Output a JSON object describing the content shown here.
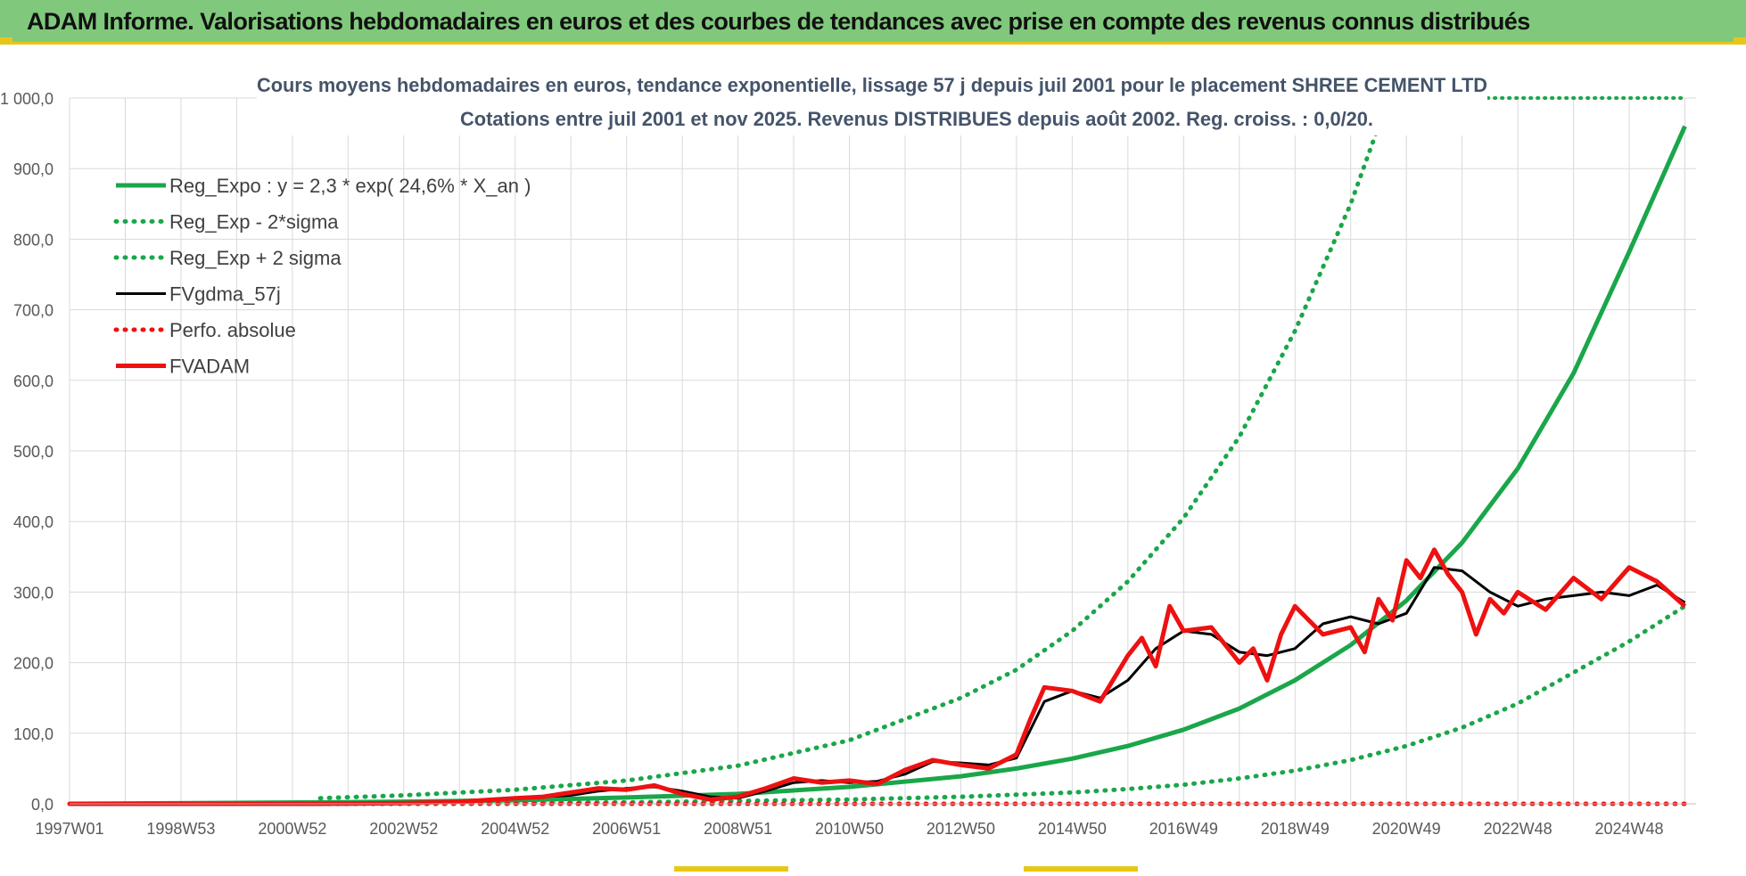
{
  "banner": {
    "title": "ADAM Informe. Valorisations hebdomadaires en euros et des courbes de tendances avec prise en compte des revenus connus distribués"
  },
  "colors": {
    "banner_bg": "#80c97c",
    "accent_yellow": "#e8c619",
    "reg_green": "#1aa64a",
    "black": "#000000",
    "red": "#ee1111",
    "grid": "#d9d9d9"
  },
  "chart_data": {
    "type": "line",
    "title": "Cours moyens hebdomadaires en euros, tendance exponentielle, lissage 57 j depuis juil 2001 pour le placement SHREE CEMENT LTD",
    "subtitle": "Cotations entre juil 2001 et nov 2025. Revenus DISTRIBUES depuis août 2002. Reg. croiss. : 0,0/20.",
    "xlabel": "",
    "ylabel": "",
    "ylim": [
      0,
      1000
    ],
    "xlim": [
      1997.0,
      2026.2
    ],
    "y_ticks": [
      0,
      100,
      200,
      300,
      400,
      500,
      600,
      700,
      800,
      900,
      1000
    ],
    "y_tick_labels": [
      "0,0",
      "100,0",
      "200,0",
      "300,0",
      "400,0",
      "500,0",
      "600,0",
      "700,0",
      "800,0",
      "900,0",
      "1 000,0"
    ],
    "x_ticks": [
      1997.0,
      1999.0,
      2001.0,
      2003.0,
      2005.0,
      2007.0,
      2009.0,
      2011.0,
      2013.0,
      2015.0,
      2017.0,
      2019.0,
      2021.0,
      2023.0,
      2025.0
    ],
    "x_tick_labels": [
      "1997W01",
      "1998W53",
      "2000W52",
      "2002W52",
      "2004W52",
      "2006W51",
      "2008W51",
      "2010W50",
      "2012W50",
      "2014W50",
      "2016W49",
      "2018W49",
      "2020W49",
      "2022W48",
      "2024W48"
    ],
    "grid": true,
    "legend_position": "top-left",
    "series": [
      {
        "name": "Reg_Expo : y = 2,3 * exp( 24,6% *  X_an )",
        "style": "solid-thick",
        "color": "#1aa64a",
        "x": [
          1997,
          2001.5,
          2003,
          2005,
          2007,
          2009,
          2011,
          2013,
          2014,
          2015,
          2016,
          2017,
          2018,
          2019,
          2020,
          2021,
          2022,
          2023,
          2024,
          2025,
          2026
        ],
        "values": [
          0,
          2,
          3,
          5,
          9,
          14,
          24,
          39,
          50,
          64,
          82,
          105,
          135,
          175,
          225,
          288,
          370,
          475,
          610,
          782,
          960
        ]
      },
      {
        "name": "Reg_Exp - 2*sigma",
        "style": "dotted",
        "color": "#1aa64a",
        "x": [
          2001.5,
          2003,
          2005,
          2007,
          2009,
          2011,
          2013,
          2015,
          2016,
          2017,
          2018,
          2019,
          2020,
          2021,
          2022,
          2023,
          2024,
          2025,
          2026
        ],
        "values": [
          0,
          0.5,
          1,
          2,
          4,
          6,
          10,
          16,
          21,
          27,
          36,
          47,
          62,
          82,
          108,
          142,
          186,
          230,
          280
        ]
      },
      {
        "name": "Reg_Exp + 2 sigma",
        "style": "dotted",
        "color": "#1aa64a",
        "x": [
          2001.5,
          2003,
          2005,
          2007,
          2009,
          2011,
          2013,
          2014,
          2015,
          2016,
          2017,
          2018,
          2019,
          2020,
          2020.5,
          2021.2
        ],
        "values": [
          8,
          12,
          20,
          33,
          54,
          90,
          150,
          190,
          245,
          315,
          405,
          520,
          670,
          850,
          960,
          1000
        ]
      },
      {
        "name": "FVgdma_57j",
        "style": "solid",
        "color": "#000000",
        "x": [
          1997,
          2001.5,
          2003,
          2004,
          2005,
          2006,
          2006.5,
          2007,
          2007.5,
          2008,
          2008.5,
          2009,
          2009.5,
          2010,
          2010.5,
          2011,
          2011.5,
          2012,
          2012.5,
          2013,
          2013.5,
          2014,
          2014.5,
          2015,
          2015.5,
          2016,
          2016.5,
          2017,
          2017.5,
          2018,
          2018.5,
          2019,
          2019.5,
          2020,
          2020.5,
          2021,
          2021.5,
          2022,
          2022.5,
          2023,
          2023.5,
          2024,
          2024.5,
          2025,
          2025.5,
          2026
        ],
        "values": [
          0,
          0,
          1,
          3,
          8,
          12,
          18,
          22,
          24,
          18,
          10,
          8,
          18,
          30,
          33,
          30,
          32,
          42,
          60,
          58,
          55,
          65,
          145,
          160,
          150,
          175,
          220,
          245,
          240,
          215,
          210,
          220,
          255,
          265,
          255,
          270,
          335,
          330,
          300,
          280,
          290,
          295,
          300,
          295,
          310,
          285
        ]
      },
      {
        "name": "Perfo. absolue",
        "style": "dotted",
        "color": "#ee1111",
        "x": [
          1997,
          2026
        ],
        "values": [
          0,
          0
        ]
      },
      {
        "name": "FVADAM",
        "style": "solid-thick",
        "color": "#ee1111",
        "x": [
          1997,
          2001.5,
          2003,
          2004,
          2005,
          2005.5,
          2006,
          2006.5,
          2007,
          2007.5,
          2008,
          2008.5,
          2009,
          2009.5,
          2010,
          2010.5,
          2011,
          2011.5,
          2012,
          2012.5,
          2013,
          2013.5,
          2014,
          2014.25,
          2014.5,
          2015,
          2015.5,
          2016,
          2016.25,
          2016.5,
          2016.75,
          2017,
          2017.5,
          2018,
          2018.25,
          2018.5,
          2018.75,
          2019,
          2019.5,
          2020,
          2020.25,
          2020.5,
          2020.75,
          2021,
          2021.25,
          2021.5,
          2021.75,
          2022,
          2022.25,
          2022.5,
          2022.75,
          2023,
          2023.5,
          2024,
          2024.5,
          2025,
          2025.5,
          2026
        ],
        "values": [
          0,
          0,
          1,
          3,
          8,
          10,
          16,
          22,
          20,
          26,
          14,
          6,
          10,
          22,
          36,
          30,
          33,
          28,
          48,
          62,
          55,
          50,
          70,
          120,
          165,
          160,
          145,
          210,
          235,
          195,
          280,
          245,
          250,
          200,
          220,
          175,
          240,
          280,
          240,
          250,
          215,
          290,
          260,
          345,
          320,
          360,
          325,
          300,
          240,
          290,
          270,
          300,
          275,
          320,
          290,
          335,
          315,
          280
        ]
      }
    ]
  }
}
